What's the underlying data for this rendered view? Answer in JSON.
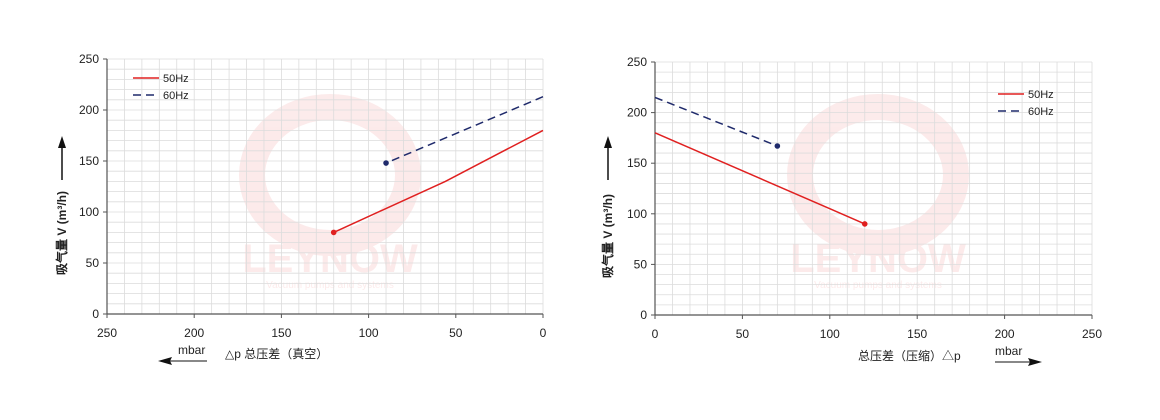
{
  "watermark": {
    "brand": "LEYNOW",
    "tagline": "Vacuum pumps and systems"
  },
  "chart_data": [
    {
      "type": "line",
      "title": "",
      "ylabel": "吸气量 V (m³/h)",
      "xlabel": "△p  总压差（真空）",
      "xunit": "mbar",
      "xlim": [
        250,
        0
      ],
      "ylim": [
        0,
        250
      ],
      "xticks": [
        250,
        200,
        150,
        100,
        50,
        0
      ],
      "yticks": [
        0,
        50,
        100,
        150,
        200,
        250
      ],
      "grid": true,
      "legend_position": "top-left",
      "series": [
        {
          "name": "50Hz",
          "style": "solid",
          "color": "#e02020",
          "x": [
            0,
            56,
            120
          ],
          "y": [
            180,
            130,
            80
          ]
        },
        {
          "name": "60Hz",
          "style": "dashed",
          "color": "#1f2a6b",
          "x": [
            0,
            90
          ],
          "y": [
            213,
            148
          ]
        }
      ]
    },
    {
      "type": "line",
      "title": "",
      "ylabel": "吸气量 V (m³/h)",
      "xlabel": "总压差（压缩）△p",
      "xunit": "mbar",
      "xlim": [
        0,
        250
      ],
      "ylim": [
        0,
        250
      ],
      "xticks": [
        0,
        50,
        100,
        150,
        200,
        250
      ],
      "yticks": [
        0,
        50,
        100,
        150,
        200,
        250
      ],
      "grid": true,
      "legend_position": "top-right",
      "series": [
        {
          "name": "50Hz",
          "style": "solid",
          "color": "#e02020",
          "x": [
            0,
            100,
            120
          ],
          "y": [
            180,
            105,
            90
          ]
        },
        {
          "name": "60Hz",
          "style": "dashed",
          "color": "#1f2a6b",
          "x": [
            0,
            70
          ],
          "y": [
            215,
            167
          ]
        }
      ]
    }
  ]
}
